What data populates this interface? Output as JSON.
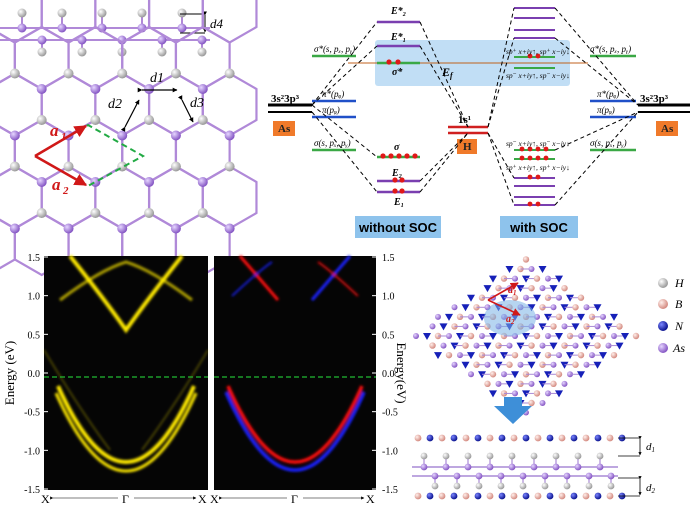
{
  "structure": {
    "side_labels": {
      "d4": "d4",
      "d1": "d1",
      "d2": "d2",
      "d3": "d3"
    },
    "lattice_vectors": {
      "a1": "a",
      "a1_sub": "1",
      "a2": "a",
      "a2_sub": "2"
    }
  },
  "energy_diagram": {
    "left_config": "3s²3p³",
    "right_config": "3s²3p³",
    "left_atom": "As",
    "right_atom": "As",
    "h_level": "1s¹",
    "h_atom": "H",
    "fermi_label": "E",
    "fermi_sub": "f",
    "left_orbitals": [
      "σ*(s, pₓ, pᵧ)",
      "π*(pᵩ)",
      "π(pᵩ)",
      "σ(s, pₓ, pᵧ)"
    ],
    "right_orbitals": [
      "σ*(s, pₓ, pᵧ)",
      "π*(pᵩ)",
      "π(pᵩ)",
      "σ(s, pₓ, pᵧ)"
    ],
    "middle_labels": {
      "E2_top": "E*₂",
      "E1_top": "E*₁",
      "sigma_star": "σ*",
      "sigma": "σ",
      "E2_bot": "E₂",
      "E1_bot": "E₁"
    },
    "soc_labels": {
      "sp_upper1": "sp⁺ x+iy↑, sp⁺ x−iy↓",
      "sp_upper2": "sp⁻ x+iy↑, sp⁻ x−iy↓",
      "sp_lower1": "sp⁻ x+iy↑, sp⁻ x−iy↓",
      "sp_lower2": "sp⁺ x+iy↑, sp⁺ x−iy↓"
    },
    "button_without": "without SOC",
    "button_with": "with SOC"
  },
  "band_plot": {
    "ylabel_left": "Energy (eV)",
    "ylabel_right": "Energy(eV)",
    "yticks": [
      "1.5",
      "1.0",
      "0.5",
      "0.0",
      "-0.5",
      "-1.0",
      "-1.5"
    ],
    "xticks": [
      "X",
      "Γ",
      "X"
    ],
    "colors": {
      "yellow": "#ffea00",
      "red": "#ff1010",
      "blue": "#1a22ff",
      "fermi": "#22bb33"
    }
  },
  "heterostructure": {
    "legend": [
      "H",
      "B",
      "N",
      "As"
    ],
    "legend_colors": [
      "#f2f2f2",
      "#f0b8b0",
      "#1620b8",
      "#a984d6"
    ],
    "vectors": {
      "a1": "a",
      "a1_sub": "1",
      "a2": "a",
      "a2_sub": "2"
    },
    "side_labels": {
      "d1": "d",
      "d1_sub": "1",
      "d2": "d",
      "d2_sub": "2"
    }
  }
}
